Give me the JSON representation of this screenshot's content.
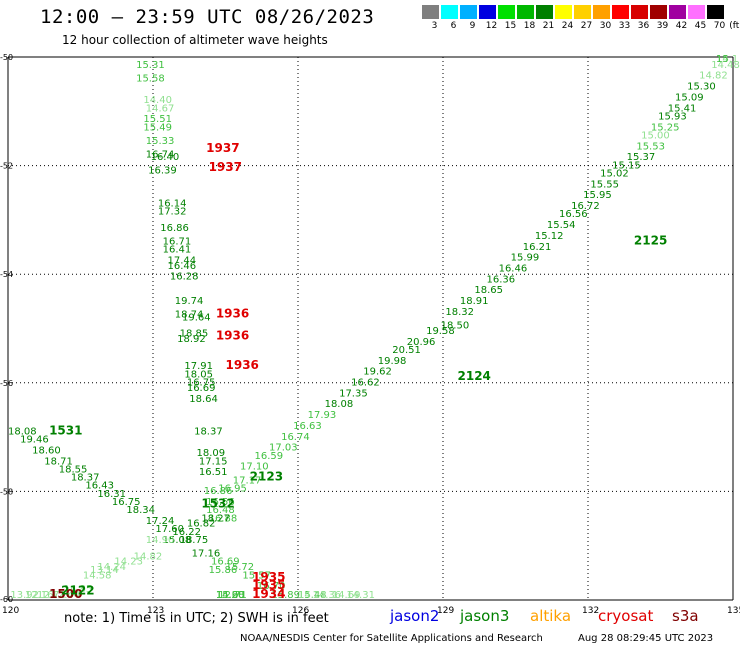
{
  "header": {
    "title": "12:00 – 23:59 UTC 08/26/2023",
    "subtitle": "12 hour collection of altimeter wave heights"
  },
  "color_scale": {
    "unit": "(ft)",
    "bins": [
      {
        "label": "3",
        "color": "#7f7f7f"
      },
      {
        "label": "6",
        "color": "#00ffff"
      },
      {
        "label": "9",
        "color": "#00b0ff"
      },
      {
        "label": "12",
        "color": "#0000e0"
      },
      {
        "label": "15",
        "color": "#00e000"
      },
      {
        "label": "18",
        "color": "#00b800"
      },
      {
        "label": "21",
        "color": "#008000"
      },
      {
        "label": "24",
        "color": "#ffff00"
      },
      {
        "label": "27",
        "color": "#ffd000"
      },
      {
        "label": "30",
        "color": "#ffa000"
      },
      {
        "label": "33",
        "color": "#ff0000"
      },
      {
        "label": "36",
        "color": "#d80000"
      },
      {
        "label": "39",
        "color": "#a00000"
      },
      {
        "label": "42",
        "color": "#a000a0"
      },
      {
        "label": "45",
        "color": "#ff70ff"
      },
      {
        "label": "70",
        "color": "#000000"
      }
    ]
  },
  "axes": {
    "x_ticks": [
      "120",
      "123",
      "126",
      "129",
      "132",
      "135"
    ],
    "y_ticks": [
      "-50",
      "-52",
      "-54",
      "-56",
      "-58",
      "-60"
    ]
  },
  "colors": {
    "jason3": "#008000",
    "jason3_light": "#40c040",
    "jason3_pale": "#90e090",
    "cryosat": "#e00000",
    "s3a": "#800000",
    "jason2": "#0000e0",
    "altika": "#ffa000"
  },
  "tracks": [
    {
      "time": "1937",
      "group": "cryosat",
      "lon": 124.1,
      "lat": -51.75
    },
    {
      "time": "1937",
      "group": "cryosat",
      "lon": 124.15,
      "lat": -52.1
    },
    {
      "time": "1936",
      "group": "cryosat",
      "lon": 124.3,
      "lat": -54.8
    },
    {
      "time": "1936",
      "group": "cryosat",
      "lon": 124.3,
      "lat": -55.2
    },
    {
      "time": "1936",
      "group": "cryosat",
      "lon": 124.5,
      "lat": -55.75
    },
    {
      "time": "1935",
      "group": "cryosat",
      "lon": 125.05,
      "lat": -59.65
    },
    {
      "time": "1935",
      "group": "cryosat",
      "lon": 125.05,
      "lat": -59.8
    },
    {
      "time": "1934",
      "group": "cryosat",
      "lon": 125.05,
      "lat": -60.1
    },
    {
      "time": "1500",
      "group": "s3a",
      "lon": 120.85,
      "lat": -60.2
    },
    {
      "time": "1531",
      "group": "jason3",
      "lon": 120.85,
      "lat": -56.95
    },
    {
      "time": "2122",
      "group": "jason3",
      "lon": 121.1,
      "lat": -59.9
    },
    {
      "time": "2123",
      "group": "jason3",
      "lon": 125.0,
      "lat": -57.8
    },
    {
      "time": "1532",
      "group": "jason3",
      "lon": 124.0,
      "lat": -58.3
    },
    {
      "time": "2124",
      "group": "jason3",
      "lon": 129.3,
      "lat": -55.95
    },
    {
      "time": "2125",
      "group": "jason3",
      "lon": 132.95,
      "lat": -53.45
    }
  ],
  "swh": [
    {
      "value": "15.31",
      "group": "jason3_light",
      "lon": 122.65,
      "lat": -50.2
    },
    {
      "value": "15.58",
      "group": "jason3_light",
      "lon": 122.65,
      "lat": -50.45
    },
    {
      "value": "14.40",
      "group": "jason3_pale",
      "lon": 122.8,
      "lat": -50.85
    },
    {
      "value": "14.67",
      "group": "jason3_pale",
      "lon": 122.85,
      "lat": -51.0
    },
    {
      "value": "15.51",
      "group": "jason3_light",
      "lon": 122.8,
      "lat": -51.2
    },
    {
      "value": "15.49",
      "group": "jason3_light",
      "lon": 122.8,
      "lat": -51.35
    },
    {
      "value": "15.33",
      "group": "jason3_light",
      "lon": 122.85,
      "lat": -51.6
    },
    {
      "value": "16.74",
      "group": "jason3",
      "lon": 122.85,
      "lat": -51.85
    },
    {
      "value": "16.40",
      "group": "jason3",
      "lon": 122.95,
      "lat": -51.9
    },
    {
      "value": "16.39",
      "group": "jason3",
      "lon": 122.9,
      "lat": -52.15
    },
    {
      "value": "16.14",
      "group": "jason3",
      "lon": 123.1,
      "lat": -52.75
    },
    {
      "value": "17.32",
      "group": "jason3",
      "lon": 123.1,
      "lat": -52.9
    },
    {
      "value": "16.86",
      "group": "jason3",
      "lon": 123.15,
      "lat": -53.2
    },
    {
      "value": "16.71",
      "group": "jason3",
      "lon": 123.2,
      "lat": -53.45
    },
    {
      "value": "16.41",
      "group": "jason3",
      "lon": 123.2,
      "lat": -53.6
    },
    {
      "value": "17.44",
      "group": "jason3",
      "lon": 123.3,
      "lat": -53.8
    },
    {
      "value": "16.46",
      "group": "jason3",
      "lon": 123.3,
      "lat": -53.9
    },
    {
      "value": "16.28",
      "group": "jason3",
      "lon": 123.35,
      "lat": -54.1
    },
    {
      "value": "19.74",
      "group": "jason3",
      "lon": 123.45,
      "lat": -54.55
    },
    {
      "value": "18.74",
      "group": "jason3",
      "lon": 123.45,
      "lat": -54.8
    },
    {
      "value": "19.64",
      "group": "jason3",
      "lon": 123.6,
      "lat": -54.85
    },
    {
      "value": "18.85",
      "group": "jason3",
      "lon": 123.55,
      "lat": -55.15
    },
    {
      "value": "18.92",
      "group": "jason3",
      "lon": 123.5,
      "lat": -55.25
    },
    {
      "value": "17.91",
      "group": "jason3",
      "lon": 123.65,
      "lat": -55.75
    },
    {
      "value": "18.05",
      "group": "jason3",
      "lon": 123.65,
      "lat": -55.9
    },
    {
      "value": "16.75",
      "group": "jason3",
      "lon": 123.7,
      "lat": -56.05
    },
    {
      "value": "16.69",
      "group": "jason3",
      "lon": 123.7,
      "lat": -56.15
    },
    {
      "value": "18.64",
      "group": "jason3",
      "lon": 123.75,
      "lat": -56.35
    },
    {
      "value": "18.37",
      "group": "jason3",
      "lon": 123.85,
      "lat": -56.95
    },
    {
      "value": "18.09",
      "group": "jason3",
      "lon": 123.9,
      "lat": -57.35
    },
    {
      "value": "17.15",
      "group": "jason3",
      "lon": 123.95,
      "lat": -57.5
    },
    {
      "value": "16.51",
      "group": "jason3",
      "lon": 123.95,
      "lat": -57.7
    },
    {
      "value": "16.86",
      "group": "jason3_light",
      "lon": 124.05,
      "lat": -58.05
    },
    {
      "value": "16.56",
      "group": "jason3_light",
      "lon": 124.1,
      "lat": -58.25
    },
    {
      "value": "16.48",
      "group": "jason3_light",
      "lon": 124.1,
      "lat": -58.4
    },
    {
      "value": "16.88",
      "group": "jason3_light",
      "lon": 124.15,
      "lat": -58.55
    },
    {
      "value": "16.95",
      "group": "jason3_light",
      "lon": 124.35,
      "lat": -58.0
    },
    {
      "value": "17.17",
      "group": "jason3_light",
      "lon": 124.65,
      "lat": -57.85
    },
    {
      "value": "17.10",
      "group": "jason3_light",
      "lon": 124.8,
      "lat": -57.6
    },
    {
      "value": "16.59",
      "group": "jason3_light",
      "lon": 125.1,
      "lat": -57.4
    },
    {
      "value": "17.03",
      "group": "jason3_light",
      "lon": 125.4,
      "lat": -57.25
    },
    {
      "value": "16.74",
      "group": "jason3_light",
      "lon": 125.65,
      "lat": -57.05
    },
    {
      "value": "16.63",
      "group": "jason3_light",
      "lon": 125.9,
      "lat": -56.85
    },
    {
      "value": "17.93",
      "group": "jason3_light",
      "lon": 126.2,
      "lat": -56.65
    },
    {
      "value": "18.08",
      "group": "jason3",
      "lon": 126.55,
      "lat": -56.45
    },
    {
      "value": "17.35",
      "group": "jason3",
      "lon": 126.85,
      "lat": -56.25
    },
    {
      "value": "16.62",
      "group": "jason3",
      "lon": 127.1,
      "lat": -56.05
    },
    {
      "value": "19.62",
      "group": "jason3",
      "lon": 127.35,
      "lat": -55.85
    },
    {
      "value": "19.98",
      "group": "jason3",
      "lon": 127.65,
      "lat": -55.65
    },
    {
      "value": "20.51",
      "group": "jason3",
      "lon": 127.95,
      "lat": -55.45
    },
    {
      "value": "20.96",
      "group": "jason3",
      "lon": 128.25,
      "lat": -55.3
    },
    {
      "value": "19.58",
      "group": "jason3",
      "lon": 128.65,
      "lat": -55.1
    },
    {
      "value": "18.50",
      "group": "jason3",
      "lon": 128.95,
      "lat": -55.0
    },
    {
      "value": "18.32",
      "group": "jason3",
      "lon": 129.05,
      "lat": -54.75
    },
    {
      "value": "18.91",
      "group": "jason3",
      "lon": 129.35,
      "lat": -54.55
    },
    {
      "value": "18.65",
      "group": "jason3",
      "lon": 129.65,
      "lat": -54.35
    },
    {
      "value": "16.36",
      "group": "jason3",
      "lon": 129.9,
      "lat": -54.15
    },
    {
      "value": "16.46",
      "group": "jason3",
      "lon": 130.15,
      "lat": -53.95
    },
    {
      "value": "15.99",
      "group": "jason3",
      "lon": 130.4,
      "lat": -53.75
    },
    {
      "value": "16.21",
      "group": "jason3",
      "lon": 130.65,
      "lat": -53.55
    },
    {
      "value": "15.12",
      "group": "jason3",
      "lon": 130.9,
      "lat": -53.35
    },
    {
      "value": "15.54",
      "group": "jason3",
      "lon": 131.15,
      "lat": -53.15
    },
    {
      "value": "16.56",
      "group": "jason3",
      "lon": 131.4,
      "lat": -52.95
    },
    {
      "value": "16.72",
      "group": "jason3",
      "lon": 131.65,
      "lat": -52.8
    },
    {
      "value": "15.95",
      "group": "jason3",
      "lon": 131.9,
      "lat": -52.6
    },
    {
      "value": "15.55",
      "group": "jason3",
      "lon": 132.05,
      "lat": -52.4
    },
    {
      "value": "15.02",
      "group": "jason3",
      "lon": 132.25,
      "lat": -52.2
    },
    {
      "value": "15.15",
      "group": "jason3",
      "lon": 132.5,
      "lat": -52.05
    },
    {
      "value": "15.37",
      "group": "jason3",
      "lon": 132.8,
      "lat": -51.9
    },
    {
      "value": "15.53",
      "group": "jason3_light",
      "lon": 133.0,
      "lat": -51.7
    },
    {
      "value": "15.00",
      "group": "jason3_pale",
      "lon": 133.1,
      "lat": -51.5
    },
    {
      "value": "15.25",
      "group": "jason3_light",
      "lon": 133.3,
      "lat": -51.35
    },
    {
      "value": "15.93",
      "group": "jason3",
      "lon": 133.45,
      "lat": -51.15
    },
    {
      "value": "15.41",
      "group": "jason3",
      "lon": 133.65,
      "lat": -51.0
    },
    {
      "value": "15.09",
      "group": "jason3",
      "lon": 133.8,
      "lat": -50.8
    },
    {
      "value": "15.30",
      "group": "jason3",
      "lon": 134.05,
      "lat": -50.6
    },
    {
      "value": "14.82",
      "group": "jason3_pale",
      "lon": 134.3,
      "lat": -50.4
    },
    {
      "value": "14.48",
      "group": "jason3_pale",
      "lon": 134.55,
      "lat": -50.2
    },
    {
      "value": "14.1",
      "group": "jason3_pale",
      "lon": 134.7,
      "lat": -50.05
    },
    {
      "value": "15",
      "group": "jason3_light",
      "lon": 134.9,
      "lat": -49.85
    },
    {
      "value": "18.08",
      "group": "jason3",
      "lon": 120.0,
      "lat": -56.95
    },
    {
      "value": "19.46",
      "group": "jason3",
      "lon": 120.25,
      "lat": -57.1
    },
    {
      "value": "18.60",
      "group": "jason3",
      "lon": 120.5,
      "lat": -57.3
    },
    {
      "value": "18.71",
      "group": "jason3",
      "lon": 120.75,
      "lat": -57.5
    },
    {
      "value": "18.55",
      "group": "jason3",
      "lon": 121.05,
      "lat": -57.65
    },
    {
      "value": "18.37",
      "group": "jason3",
      "lon": 121.3,
      "lat": -57.8
    },
    {
      "value": "16.43",
      "group": "jason3",
      "lon": 121.6,
      "lat": -57.95
    },
    {
      "value": "16.31",
      "group": "jason3",
      "lon": 121.85,
      "lat": -58.1
    },
    {
      "value": "16.75",
      "group": "jason3",
      "lon": 122.15,
      "lat": -58.25
    },
    {
      "value": "18.34",
      "group": "jason3",
      "lon": 122.45,
      "lat": -58.4
    },
    {
      "value": "17.24",
      "group": "jason3",
      "lon": 122.85,
      "lat": -58.6
    },
    {
      "value": "17.60",
      "group": "jason3",
      "lon": 123.05,
      "lat": -58.75
    },
    {
      "value": "16.22",
      "group": "jason3",
      "lon": 123.4,
      "lat": -58.8
    },
    {
      "value": "16.82",
      "group": "jason3",
      "lon": 123.7,
      "lat": -58.65
    },
    {
      "value": "18.27",
      "group": "jason3",
      "lon": 124.0,
      "lat": -58.55
    },
    {
      "value": "15.08",
      "group": "jason3",
      "lon": 123.2,
      "lat": -58.95
    },
    {
      "value": "18.75",
      "group": "jason3",
      "lon": 123.55,
      "lat": -58.95
    },
    {
      "value": "17.16",
      "group": "jason3",
      "lon": 123.8,
      "lat": -59.2
    },
    {
      "value": "16.69",
      "group": "jason3_light",
      "lon": 124.2,
      "lat": -59.35
    },
    {
      "value": "15.72",
      "group": "jason3_light",
      "lon": 124.5,
      "lat": -59.45
    },
    {
      "value": "15.86",
      "group": "jason3_light",
      "lon": 124.15,
      "lat": -59.5
    },
    {
      "value": "15.57",
      "group": "jason3_light",
      "lon": 124.85,
      "lat": -59.6
    },
    {
      "value": "16.70",
      "group": "jason3_light",
      "lon": 125.15,
      "lat": -59.8
    },
    {
      "value": "15.89",
      "group": "jason3_light",
      "lon": 125.45,
      "lat": -60.0
    },
    {
      "value": "14.90",
      "group": "jason3_light",
      "lon": 124.3,
      "lat": -60.2
    },
    {
      "value": "15.48",
      "group": "jason3_light",
      "lon": 126.0,
      "lat": -60.45
    },
    {
      "value": "14.60",
      "group": "jason3_light",
      "lon": 124.3,
      "lat": -60.45
    },
    {
      "value": "15.28",
      "group": "jason3_light",
      "lon": 124.3,
      "lat": -60.6
    },
    {
      "value": "12.71",
      "group": "jason3_light",
      "lon": 124.35,
      "lat": -61.1
    },
    {
      "value": "14.23",
      "group": "jason3_pale",
      "lon": 126.0,
      "lat": -60.6
    },
    {
      "value": "14.36",
      "group": "jason3_pale",
      "lon": 126.3,
      "lat": -60.8
    },
    {
      "value": "14.69",
      "group": "jason3_pale",
      "lon": 126.7,
      "lat": -60.95
    },
    {
      "value": "14.31",
      "group": "jason3_pale",
      "lon": 127.0,
      "lat": -61.1
    },
    {
      "value": "14.90",
      "group": "jason3_pale",
      "lon": 122.85,
      "lat": -58.95
    },
    {
      "value": "14.82",
      "group": "jason3_pale",
      "lon": 122.6,
      "lat": -59.25
    },
    {
      "value": "14.23",
      "group": "jason3_pale",
      "lon": 122.2,
      "lat": -59.35
    },
    {
      "value": "14.24",
      "group": "jason3_pale",
      "lon": 121.85,
      "lat": -59.45
    },
    {
      "value": "14.58",
      "group": "jason3_pale",
      "lon": 121.55,
      "lat": -59.6
    },
    {
      "value": "13.14",
      "group": "jason3_pale",
      "lon": 121.7,
      "lat": -59.5
    },
    {
      "value": "14.85",
      "group": "jason3_pale",
      "lon": 121.15,
      "lat": -59.85
    },
    {
      "value": "12.44",
      "group": "jason3_pale",
      "lon": 120.9,
      "lat": -60.0
    },
    {
      "value": "12.71",
      "group": "jason3_pale",
      "lon": 120.6,
      "lat": -60.15
    },
    {
      "value": "12.16",
      "group": "jason3_pale",
      "lon": 120.35,
      "lat": -60.3
    },
    {
      "value": "13.92",
      "group": "jason3_pale",
      "lon": 120.05,
      "lat": -60.55
    }
  ],
  "footer": {
    "note": "note: 1) Time is in UTC; 2) SWH is in feet",
    "legend": [
      {
        "label": "jason2",
        "color": "#0000e0"
      },
      {
        "label": "jason3",
        "color": "#008000"
      },
      {
        "label": "altika",
        "color": "#ffa000"
      },
      {
        "label": "cryosat",
        "color": "#e00000"
      },
      {
        "label": "s3a",
        "color": "#800000"
      }
    ],
    "credit": "NOAA/NESDIS Center for Satellite Applications and Research",
    "stamp": "Aug 28 08:29:45 UTC 2023"
  }
}
